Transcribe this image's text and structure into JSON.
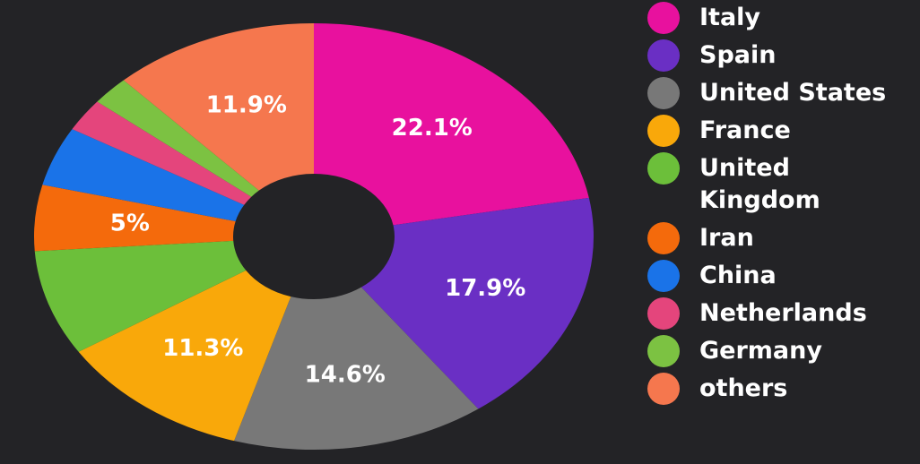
{
  "chart_data": {
    "type": "donut",
    "categories": [
      "Italy",
      "Spain",
      "United States",
      "France",
      "United Kingdom",
      "Iran",
      "China",
      "Netherlands",
      "Germany",
      "others"
    ],
    "values": [
      22.1,
      17.9,
      14.6,
      11.3,
      8,
      5,
      4.5,
      2.5,
      2.2,
      11.9
    ],
    "value_labels": [
      "22.1%",
      "17.9%",
      "14.6%",
      "11.3%",
      null,
      "5%",
      null,
      null,
      null,
      "11.9%"
    ],
    "colors": [
      "#e8119e",
      "#6a2fc4",
      "#787878",
      "#f9a80a",
      "#6cbf3a",
      "#f46a0c",
      "#1a73e8",
      "#e4457c",
      "#7cc242",
      "#f5774e"
    ]
  }
}
